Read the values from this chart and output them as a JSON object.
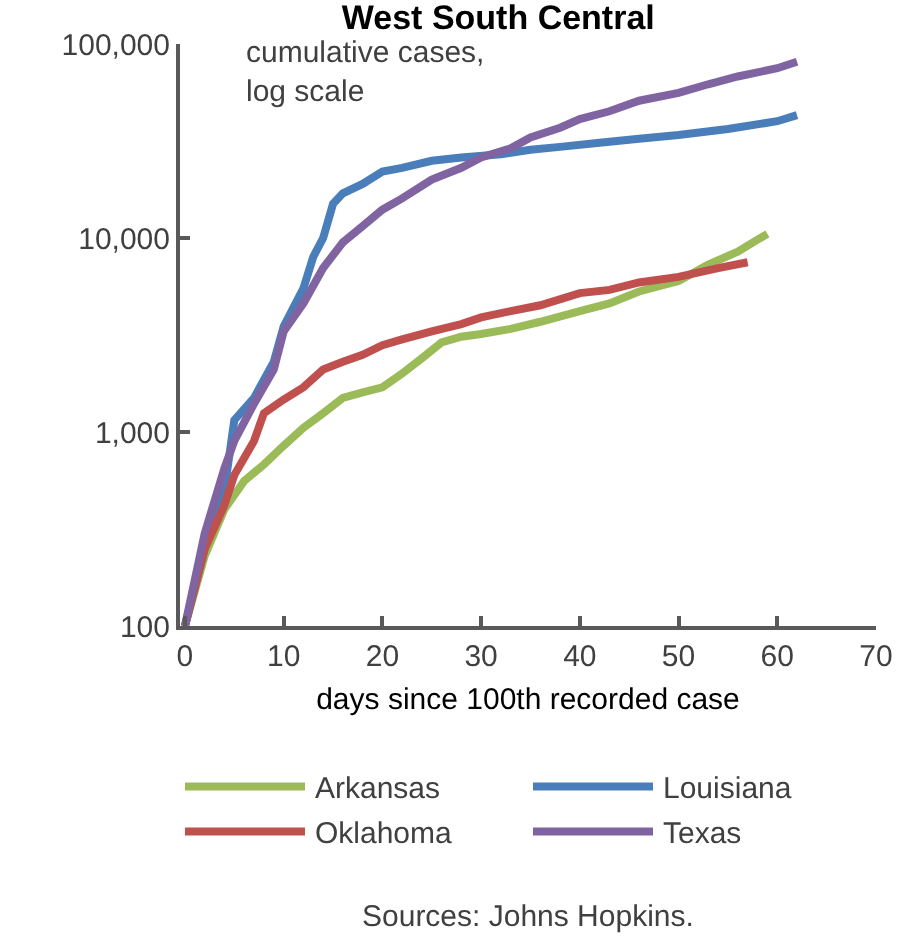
{
  "chart_data": {
    "type": "line",
    "title": "West South Central",
    "xlabel": "days since 100th recorded case",
    "log": true,
    "grid": false,
    "legend": "bottom",
    "marker": "none",
    "line_style": "solid",
    "xlim": [
      -0.5,
      70
    ],
    "xticks": [
      0,
      10,
      20,
      30,
      40,
      50,
      60,
      70
    ],
    "ylim": [
      100,
      100000
    ],
    "yticks": [
      100,
      {
        "value": 1000,
        "label": "1,000"
      },
      {
        "value": 10000,
        "label": "10,000"
      },
      {
        "value": 100000,
        "label": "100,000"
      }
    ],
    "annotations": [
      "cumulative cases,\nlog scale",
      "Sources: Johns Hopkins."
    ],
    "series": [
      {
        "name": "Arkansas",
        "color": "#9bbb59",
        "x": [
          0,
          2,
          4,
          6,
          8,
          10,
          12,
          14,
          16,
          18,
          20,
          22,
          24,
          26,
          28,
          30,
          33,
          36,
          40,
          43,
          46,
          50,
          53,
          56,
          58,
          59
        ],
        "values": [
          100,
          230,
          400,
          560,
          680,
          850,
          1050,
          1250,
          1500,
          1600,
          1700,
          2000,
          2400,
          2900,
          3100,
          3200,
          3400,
          3700,
          4200,
          4600,
          5300,
          6000,
          7300,
          8500,
          9800,
          10500
        ]
      },
      {
        "name": "Louisiana",
        "color": "#4a7ebb",
        "x": [
          0,
          2,
          4,
          5,
          7,
          9,
          10,
          12,
          13,
          14,
          15,
          16,
          18,
          20,
          22,
          25,
          28,
          32,
          35,
          38,
          42,
          46,
          50,
          55,
          60,
          62
        ],
        "values": [
          100,
          250,
          500,
          1150,
          1500,
          2300,
          3500,
          5500,
          8000,
          10000,
          15000,
          17000,
          19000,
          22000,
          23000,
          25000,
          26000,
          27000,
          28500,
          29500,
          31000,
          32500,
          34000,
          36500,
          40000,
          43000
        ]
      },
      {
        "name": "Oklahoma",
        "color": "#c0504d",
        "x": [
          0,
          2,
          4,
          5,
          7,
          8,
          10,
          12,
          14,
          16,
          18,
          20,
          22,
          25,
          28,
          30,
          33,
          36,
          40,
          43,
          46,
          50,
          54,
          57
        ],
        "values": [
          100,
          250,
          420,
          600,
          900,
          1250,
          1470,
          1700,
          2100,
          2300,
          2500,
          2800,
          3000,
          3300,
          3600,
          3900,
          4200,
          4500,
          5200,
          5400,
          5900,
          6300,
          7000,
          7500
        ]
      },
      {
        "name": "Texas",
        "color": "#8064a2",
        "x": [
          0,
          2,
          4,
          5,
          7,
          9,
          10,
          12,
          14,
          16,
          18,
          20,
          22,
          25,
          28,
          30,
          33,
          35,
          38,
          40,
          43,
          46,
          50,
          53,
          56,
          60,
          62
        ],
        "values": [
          100,
          300,
          650,
          900,
          1400,
          2100,
          3300,
          4600,
          7000,
          9500,
          11500,
          14000,
          16000,
          20000,
          23000,
          26000,
          29000,
          33000,
          37000,
          41000,
          45000,
          51000,
          56000,
          62000,
          68000,
          75000,
          81000
        ]
      }
    ]
  }
}
